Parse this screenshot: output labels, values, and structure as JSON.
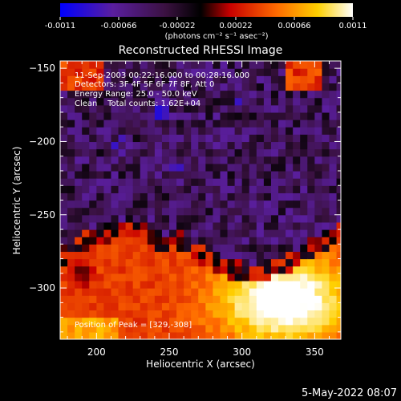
{
  "chart_data": {
    "type": "heatmap",
    "title": "Reconstructed RHESSI Image",
    "xlabel": "Heliocentric X (arcsec)",
    "ylabel": "Heliocentric Y (arcsec)",
    "xlim": [
      175,
      368
    ],
    "ylim": [
      -335,
      -145
    ],
    "xticks": [
      200,
      250,
      300,
      350
    ],
    "yticks": [
      -150,
      -200,
      -250,
      -300
    ],
    "colorbar": {
      "min": -0.0011,
      "max": 0.0011,
      "ticks": [
        "-0.0011",
        "-0.00066",
        "-0.00022",
        "0.00022",
        "0.00066",
        "0.0011"
      ],
      "unit_label": "(photons cm⁻² s⁻¹ asec⁻²)",
      "colormap": [
        "#0000ff",
        "#5a1e9e",
        "#3a1140",
        "#000000",
        "#c80000",
        "#ff6a00",
        "#ffd000",
        "#ffffff"
      ]
    },
    "annotations": [
      "11-Sep-2003 00:22:16.000 to 00:28:16.000",
      "Detectors: 3F 4F 5F 6F 7F 8F, Att 0",
      "Energy Range: 25.0 - 50.0 keV",
      "Clean    Total counts: 1.62E+04"
    ],
    "peak_label": "Position of Peak = [329,-308]",
    "peak": [
      329,
      -308
    ],
    "regions": {
      "background_level": -0.0004,
      "bright_peak_value": 0.0011,
      "bright_region_y_threshold": -280
    }
  },
  "footer_timestamp": "5-May-2022 08:07"
}
